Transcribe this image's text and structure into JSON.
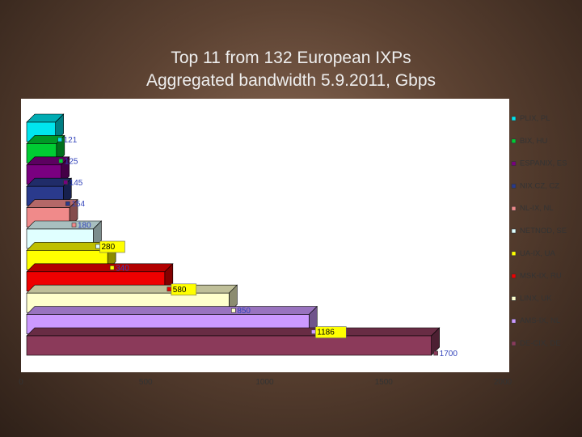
{
  "chart_data": {
    "type": "bar",
    "orientation": "horizontal",
    "title": "Top 11 from 132 European IXPs",
    "subtitle": "Aggregated bandwidth 5.9.2011, Gbps",
    "xlabel": "",
    "ylabel": "",
    "xlim": [
      0,
      2000
    ],
    "xticks": [
      "0",
      "500",
      "1000",
      "1500",
      "2000"
    ],
    "grid": false,
    "legend_position": "right",
    "series": [
      {
        "name": "PLIX, PL",
        "value": 121,
        "label": "121",
        "color": "#00e5ee"
      },
      {
        "name": "BIX, HU",
        "value": 125,
        "label": "125",
        "color": "#00cc33"
      },
      {
        "name": "ESPANIX, ES",
        "value": 145,
        "label": "145",
        "color": "#7a0080"
      },
      {
        "name": "NIX.CZ, CZ",
        "value": 154,
        "label": "154",
        "color": "#2a3a8c"
      },
      {
        "name": "NL-IX, NL",
        "value": 180,
        "label": "180",
        "color": "#f08a8a"
      },
      {
        "name": "NETNOD, SE",
        "value": 280,
        "label": "280",
        "color": "#e0ffff"
      },
      {
        "name": "UA-IX, UA",
        "value": 340,
        "label": "340",
        "color": "#ffff00"
      },
      {
        "name": "MSK-IX, RU",
        "value": 580,
        "label": "580",
        "color": "#ee0000"
      },
      {
        "name": "LINX, UK",
        "value": 850,
        "label": "850",
        "color": "#ffffcc"
      },
      {
        "name": "AMS-IX, NL",
        "value": 1186,
        "label": "1186",
        "color": "#cc99ff"
      },
      {
        "name": "DE-CIX, DE",
        "value": 1700,
        "label": "1700",
        "color": "#8b3a5a"
      }
    ]
  }
}
